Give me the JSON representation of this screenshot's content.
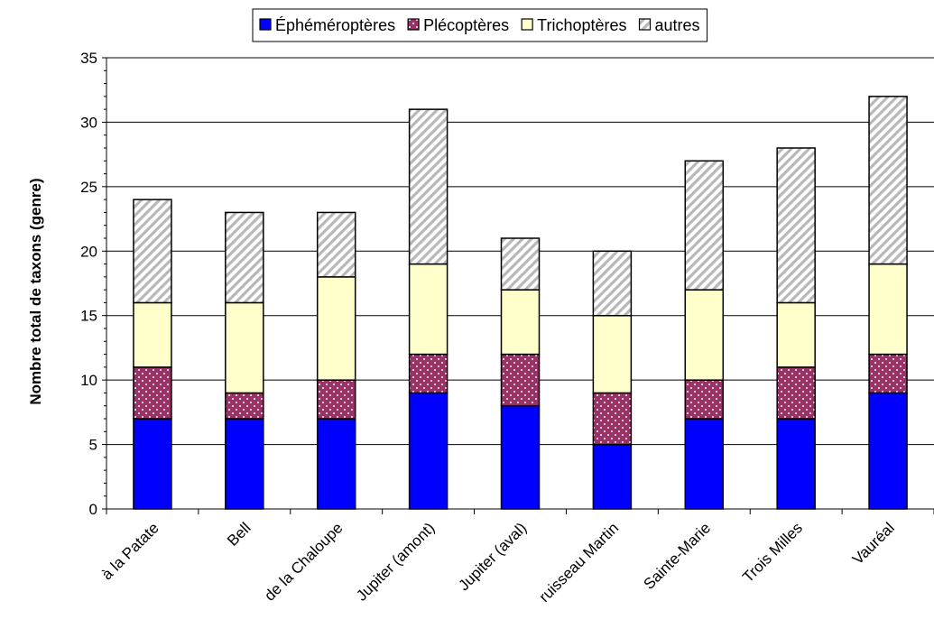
{
  "chart_data": {
    "type": "bar",
    "stacked": true,
    "title": "",
    "xlabel": "",
    "ylabel": "Nombre total de taxons (genre)",
    "ylim": [
      0,
      35
    ],
    "yticks": [
      0,
      5,
      10,
      15,
      20,
      25,
      30,
      35
    ],
    "grid": true,
    "legend_position": "top",
    "categories": [
      "à la Patate",
      "Bell",
      "de la Chaloupe",
      "Jupiter (amont)",
      "Jupiter (aval)",
      "ruisseau Martin",
      "Sainte-Marie",
      "Trois Milles",
      "Vauréal"
    ],
    "series": [
      {
        "name": "Éphéméroptères",
        "color": "#0000FF",
        "pattern": "solid",
        "values": [
          7,
          7,
          7,
          9,
          8,
          5,
          7,
          7,
          9
        ]
      },
      {
        "name": "Plécoptères",
        "color": "#993366",
        "pattern": "dots",
        "values": [
          4,
          2,
          3,
          3,
          4,
          4,
          3,
          4,
          3
        ]
      },
      {
        "name": "Trichoptères",
        "color": "#FFFFCC",
        "pattern": "solid",
        "values": [
          5,
          7,
          8,
          7,
          5,
          6,
          7,
          5,
          7
        ]
      },
      {
        "name": "autres",
        "color": "#DDDDDD",
        "pattern": "diagonal-stripes",
        "values": [
          8,
          7,
          5,
          12,
          4,
          5,
          10,
          12,
          13
        ]
      }
    ]
  }
}
